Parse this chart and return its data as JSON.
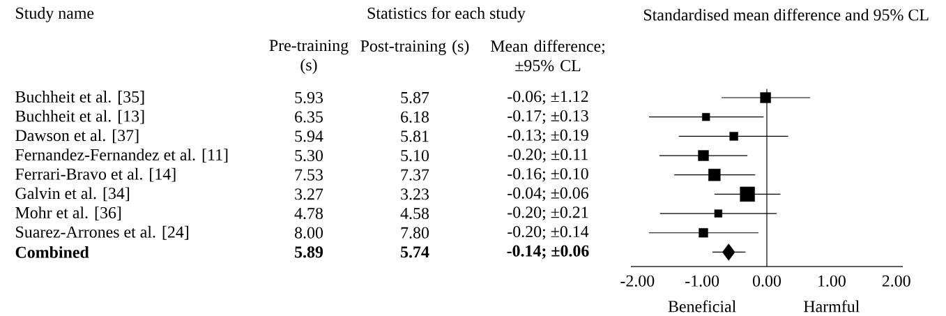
{
  "chart_data": [
    {
      "type": "other",
      "title": "Statistics for each study",
      "annotations": [
        "Study name"
      ],
      "categories": [
        "Buchheit et al. [35]",
        "Buchheit et al. [13]",
        "Dawson et al. [37]",
        "Fernandez-Fernandez et al. [11]",
        "Ferrari-Bravo et al. [14]",
        "Galvin et al. [34]",
        "Mohr et al. [36]",
        "Suarez-Arrones et al. [24]",
        "Combined"
      ],
      "series": [
        {
          "name": "Pre-training (s)",
          "values": [
            5.93,
            6.35,
            5.94,
            5.3,
            7.53,
            3.27,
            4.78,
            8.0,
            5.89
          ],
          "value_labels": [
            "5.93",
            "6.35",
            "5.94",
            "5.30",
            "7.53",
            "3.27",
            "4.78",
            "8.00",
            "5.89"
          ]
        },
        {
          "name": "Post-training (s)",
          "values": [
            5.87,
            6.18,
            5.81,
            5.1,
            7.37,
            3.23,
            4.58,
            7.8,
            5.74
          ],
          "value_labels": [
            "5.87",
            "6.18",
            "5.81",
            "5.10",
            "7.37",
            "3.23",
            "4.58",
            "7.80",
            "5.74"
          ]
        },
        {
          "name": "Mean difference; ±95% CL",
          "values": [
            -0.06,
            -0.17,
            -0.13,
            -0.2,
            -0.16,
            -0.04,
            -0.2,
            -0.2,
            -0.14
          ],
          "value_labels": [
            "-0.06; ±1.12",
            "-0.17; ±0.13",
            "-0.13; ±0.19",
            "-0.20; ±0.11",
            "-0.16; ±0.10",
            "-0.04; ±0.06",
            "-0.20; ±0.21",
            "-0.20; ±0.14",
            "-0.14; ±0.06"
          ]
        }
      ]
    },
    {
      "type": "scatter",
      "title": "Standardised mean difference and 95% CL",
      "orientation": "horizontal",
      "tick_labels": "x",
      "categories": [
        null,
        null,
        null,
        null,
        null,
        null,
        null,
        null,
        null
      ],
      "xlim": [
        -2.1,
        2.1
      ],
      "xticks": [
        {
          "value": -2,
          "label": "-2.00"
        },
        {
          "value": -1,
          "label": "-1.00"
        },
        {
          "value": 0,
          "label": "0.00"
        },
        {
          "value": 1,
          "label": "1.00"
        },
        {
          "value": 2,
          "label": "2.00"
        }
      ],
      "ref_lines": [
        {
          "axis": "x",
          "value": 0
        }
      ],
      "annotations": [
        "Beneficial",
        "Harmful"
      ],
      "series": [
        {
          "type": "bubble",
          "marker": "square",
          "color": "#000000",
          "values": [
            -0.02,
            -0.94,
            -0.51,
            -0.98,
            -0.81,
            -0.3,
            -0.75,
            -0.98,
            null
          ],
          "sizes": [
            0.51,
            0.27,
            0.33,
            0.51,
            0.66,
            1,
            0.27,
            0.38,
            null
          ],
          "errors": [
            [
              -0.7,
              0.67
            ],
            [
              -1.82,
              -0.05
            ],
            [
              -1.36,
              0.33
            ],
            [
              -1.66,
              -0.3
            ],
            [
              -1.43,
              -0.18
            ],
            [
              -0.81,
              0.21
            ],
            [
              -1.65,
              0.15
            ],
            [
              -1.82,
              -0.13
            ],
            null
          ]
        },
        {
          "type": "scatter",
          "marker": "diamond",
          "color": "#000000",
          "values": [
            null,
            null,
            null,
            null,
            null,
            null,
            null,
            null,
            -0.59
          ],
          "errors": [
            null,
            null,
            null,
            null,
            null,
            null,
            null,
            null,
            [
              -0.84,
              -0.33
            ]
          ]
        }
      ]
    }
  ]
}
